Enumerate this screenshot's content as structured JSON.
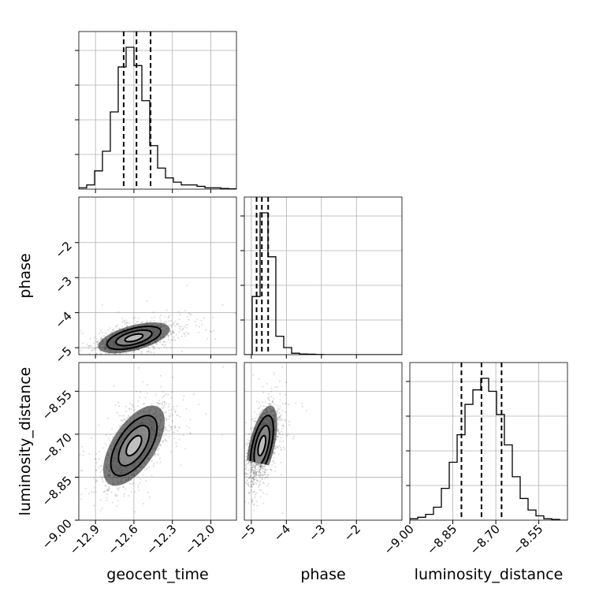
{
  "chart_data": {
    "type": "corner",
    "parameters": [
      "geocent_time",
      "phase",
      "luminosity_distance"
    ],
    "axis_labels": {
      "geocent_time": "geocent_time",
      "phase": "phase",
      "luminosity_distance": "luminosity_distance"
    },
    "ranges": {
      "geocent_time": [
        -13.03,
        -11.8
      ],
      "phase": [
        -5.2,
        -0.7
      ],
      "luminosity_distance": [
        -9.0,
        -8.45
      ]
    },
    "ticks": {
      "geocent_time": {
        "values": [
          -12.9,
          -12.6,
          -12.3,
          -12.0
        ],
        "labels": [
          "−12.9",
          "−12.6",
          "−12.3",
          "−12.0"
        ]
      },
      "phase": {
        "values": [
          -5,
          -4,
          -3,
          -2
        ],
        "labels": [
          "−5",
          "−4",
          "−3",
          "−2"
        ]
      },
      "luminosity_distance": {
        "values": [
          -9.0,
          -8.85,
          -8.7,
          -8.55
        ],
        "labels": [
          "−9.00",
          "−8.85",
          "−8.70",
          "−8.55"
        ]
      }
    },
    "grid": true,
    "histograms": {
      "geocent_time": {
        "bin_start": -13.03,
        "bin_width": 0.0615,
        "counts": [
          1,
          3,
          13,
          27,
          55,
          87,
          101,
          88,
          63,
          31,
          15,
          8,
          5,
          3,
          3,
          2,
          1,
          1,
          0.5,
          0.3
        ],
        "quantiles": [
          -12.68,
          -12.58,
          -12.47
        ]
      },
      "phase": {
        "bin_start": -5.2,
        "bin_width": 0.225,
        "counts": [
          0,
          41,
          100,
          69,
          13,
          5,
          1,
          0.5,
          0.3,
          0.1,
          0,
          0,
          0,
          0,
          0,
          0,
          0,
          0,
          0,
          0
        ],
        "quantiles": [
          -4.85,
          -4.7,
          -4.52
        ]
      },
      "luminosity_distance": {
        "bin_start": -9.0,
        "bin_width": 0.0275,
        "counts": [
          1,
          2,
          4,
          9,
          22,
          40,
          59,
          80,
          90,
          98,
          89,
          73,
          52,
          30,
          15,
          7,
          3,
          1,
          0.5,
          0
        ],
        "quantiles": [
          -8.82,
          -8.75,
          -8.68
        ]
      }
    },
    "pairs": [
      {
        "x": "geocent_time",
        "y": "phase",
        "center": [
          -12.6,
          -4.72
        ],
        "sd": [
          0.14,
          0.22
        ],
        "corr": 0.55
      },
      {
        "x": "geocent_time",
        "y": "luminosity_distance",
        "center": [
          -12.6,
          -8.74
        ],
        "sd": [
          0.12,
          0.07
        ],
        "corr": 0.6
      },
      {
        "x": "phase",
        "y": "luminosity_distance",
        "center": [
          -4.7,
          -8.74
        ],
        "sd": [
          0.22,
          0.07
        ],
        "corr": 0.55
      }
    ],
    "contour_levels_sigma": [
      0.5,
      1.0,
      1.5,
      2.0
    ]
  }
}
